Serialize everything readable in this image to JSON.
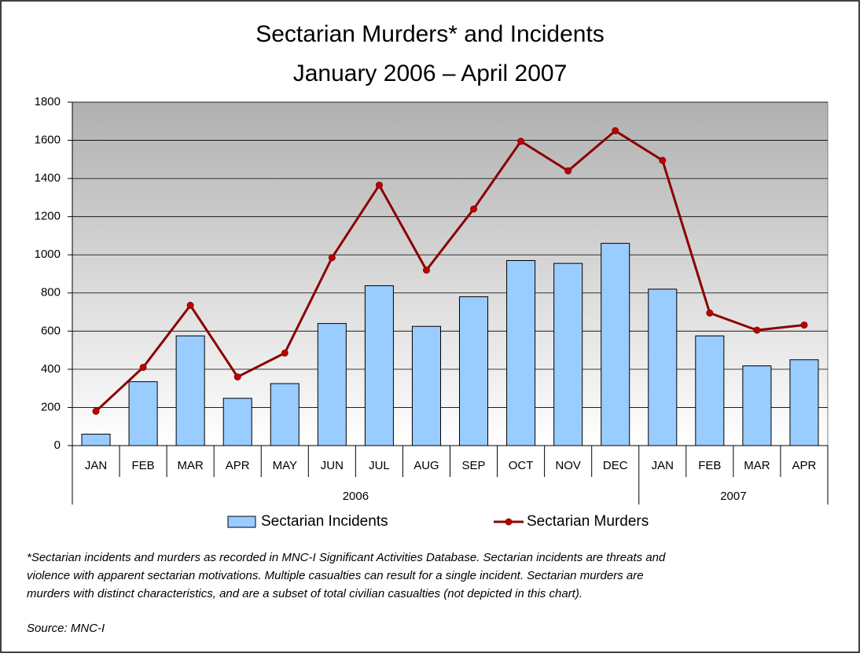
{
  "chart_data": {
    "type": "combo",
    "title": [
      "Sectarian Murders* and Incidents",
      "January 2006 – April 2007"
    ],
    "categories": [
      "JAN",
      "FEB",
      "MAR",
      "APR",
      "MAY",
      "JUN",
      "JUL",
      "AUG",
      "SEP",
      "OCT",
      "NOV",
      "DEC",
      "JAN",
      "FEB",
      "MAR",
      "APR"
    ],
    "year_groups": [
      {
        "name": "2006",
        "count": 12
      },
      {
        "name": "2007",
        "count": 4
      }
    ],
    "series": [
      {
        "name": "Sectarian Incidents",
        "type": "bar",
        "color": "#99ccff",
        "values": [
          60,
          335,
          575,
          248,
          325,
          640,
          838,
          625,
          780,
          970,
          955,
          1060,
          820,
          575,
          418,
          450
        ]
      },
      {
        "name": "Sectarian Murders",
        "type": "line",
        "color": "#8b0000",
        "values": [
          180,
          410,
          735,
          360,
          485,
          985,
          1365,
          920,
          1240,
          1595,
          1440,
          1650,
          1495,
          695,
          605,
          632
        ]
      }
    ],
    "ylim": [
      0,
      1800
    ],
    "yticks": [
      0,
      200,
      400,
      600,
      800,
      1000,
      1200,
      1400,
      1600,
      1800
    ],
    "grid": true,
    "legend": "bottom",
    "footnote": [
      "*Sectarian incidents and murders as recorded in MNC-I Significant Activities Database.  Sectarian incidents are threats and",
      "violence with apparent sectarian motivations.  Multiple casualties can result for a single incident. Sectarian murders are",
      "murders with distinct characteristics, and are a subset of total civilian casualties (not depicted in this chart)."
    ],
    "source": "Source: MNC-I"
  }
}
